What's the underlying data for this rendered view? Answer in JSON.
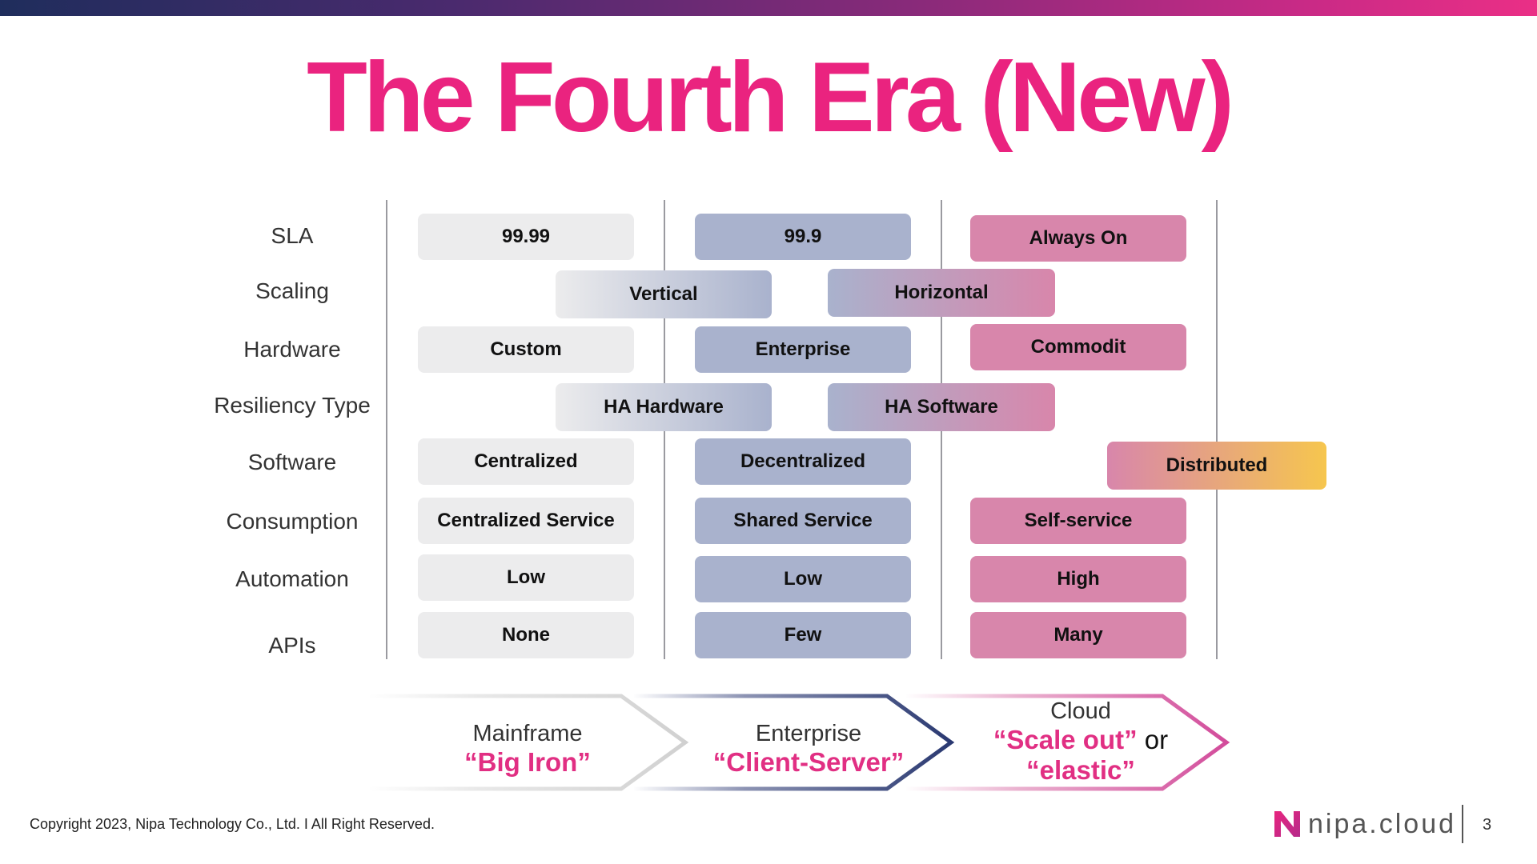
{
  "title": "The Fourth Era (New)",
  "row_labels": [
    "SLA",
    "Scaling",
    "Hardware",
    "Resiliency Type",
    "Software",
    "Consumption",
    "Automation",
    "APIs"
  ],
  "rows": {
    "sla": [
      "99.99",
      "99.9",
      "Always On"
    ],
    "scaling": [
      "Vertical",
      "Horizontal"
    ],
    "hardware": [
      "Custom",
      "Enterprise",
      "Commodit"
    ],
    "resiliency": [
      "HA Hardware",
      "HA Software"
    ],
    "software": [
      "Centralized",
      "Decentralized",
      "Distributed"
    ],
    "consumption": [
      "Centralized Service",
      "Shared Service",
      "Self-service"
    ],
    "automation": [
      "Low",
      "Low",
      "High"
    ],
    "apis": [
      "None",
      "Few",
      "Many"
    ]
  },
  "eras": [
    {
      "name": "Mainframe",
      "tag": "“Big Iron”"
    },
    {
      "name": "Enterprise",
      "tag": "“Client-Server”"
    },
    {
      "name": "Cloud",
      "tag": "“Scale out”",
      "connector": "or",
      "tag2": "“elastic”"
    }
  ],
  "colors": {
    "title": "#ea237f",
    "mainframe": "#ececed",
    "enterprise": "#a9b2cd",
    "cloud": "#d886ab",
    "distributed_end": "#f6c64e"
  },
  "footer": {
    "copyright": "Copyright 2023, Nipa Technology Co., Ltd. I All Right Reserved.",
    "logo_mark": "N",
    "logo_text": "nipa.cloud",
    "page_number": "3"
  }
}
